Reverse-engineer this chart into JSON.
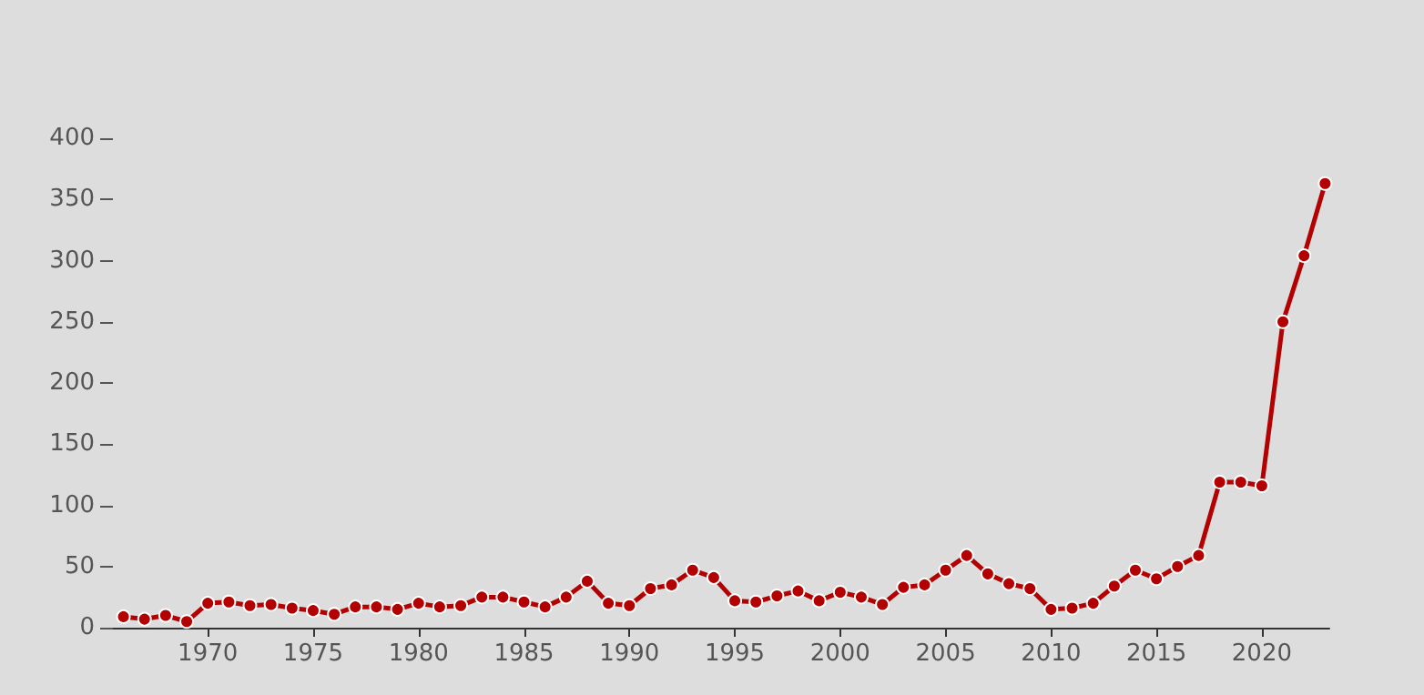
{
  "chart_data": {
    "type": "line",
    "x": [
      1966,
      1967,
      1968,
      1969,
      1970,
      1971,
      1972,
      1973,
      1974,
      1975,
      1976,
      1977,
      1978,
      1979,
      1980,
      1981,
      1982,
      1983,
      1984,
      1985,
      1986,
      1987,
      1988,
      1989,
      1990,
      1991,
      1992,
      1993,
      1994,
      1995,
      1996,
      1997,
      1998,
      1999,
      2000,
      2001,
      2002,
      2003,
      2004,
      2005,
      2006,
      2007,
      2008,
      2009,
      2010,
      2011,
      2012,
      2013,
      2014,
      2015,
      2016,
      2017,
      2018,
      2019,
      2020,
      2021,
      2022,
      2023
    ],
    "series": [
      {
        "color": "#b30000",
        "values": [
          9,
          7,
          10,
          5,
          20,
          21,
          18,
          19,
          16,
          14,
          11,
          17,
          17,
          15,
          20,
          17,
          18,
          25,
          25,
          21,
          17,
          25,
          38,
          20,
          18,
          32,
          35,
          47,
          41,
          22,
          21,
          26,
          30,
          22,
          29,
          25,
          19,
          33,
          35,
          47,
          59,
          44,
          36,
          32,
          15,
          16,
          20,
          34,
          47,
          40,
          50,
          59,
          119,
          119,
          116,
          250,
          304,
          363
        ]
      }
    ],
    "xlim": [
      1965.5,
      2023.2
    ],
    "xticks": [
      1970,
      1975,
      1980,
      1985,
      1990,
      1995,
      2000,
      2005,
      2010,
      2015,
      2020
    ],
    "ylim": [
      0,
      400
    ],
    "yticks": [
      0,
      50,
      100,
      150,
      200,
      250,
      300,
      350,
      400
    ],
    "grid": false,
    "marker": "circle",
    "line_style": "solid"
  }
}
